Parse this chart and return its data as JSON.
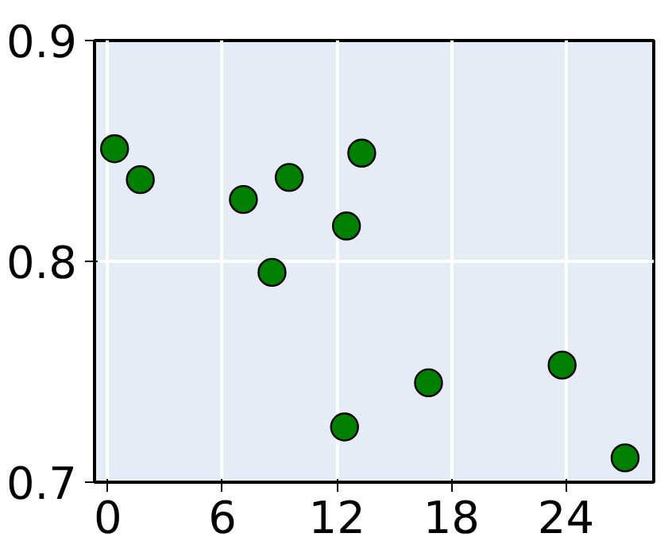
{
  "chart_data": {
    "type": "scatter",
    "x": [
      0.35,
      1.7,
      7.1,
      8.6,
      9.5,
      12.5,
      13.3,
      12.4,
      16.8,
      23.8,
      27.1
    ],
    "series": [
      {
        "color": "#008000",
        "values": [
          0.851,
          0.837,
          0.828,
          0.795,
          0.838,
          0.816,
          0.849,
          0.725,
          0.745,
          0.753,
          0.711
        ]
      }
    ],
    "xlim": [
      -0.7,
      28.6
    ],
    "ylim": [
      0.7,
      0.9
    ],
    "xticks": [
      0,
      6,
      12,
      18,
      24
    ],
    "yticks": [
      0.7,
      0.8,
      0.9
    ],
    "grid": true,
    "marker": "circle"
  }
}
